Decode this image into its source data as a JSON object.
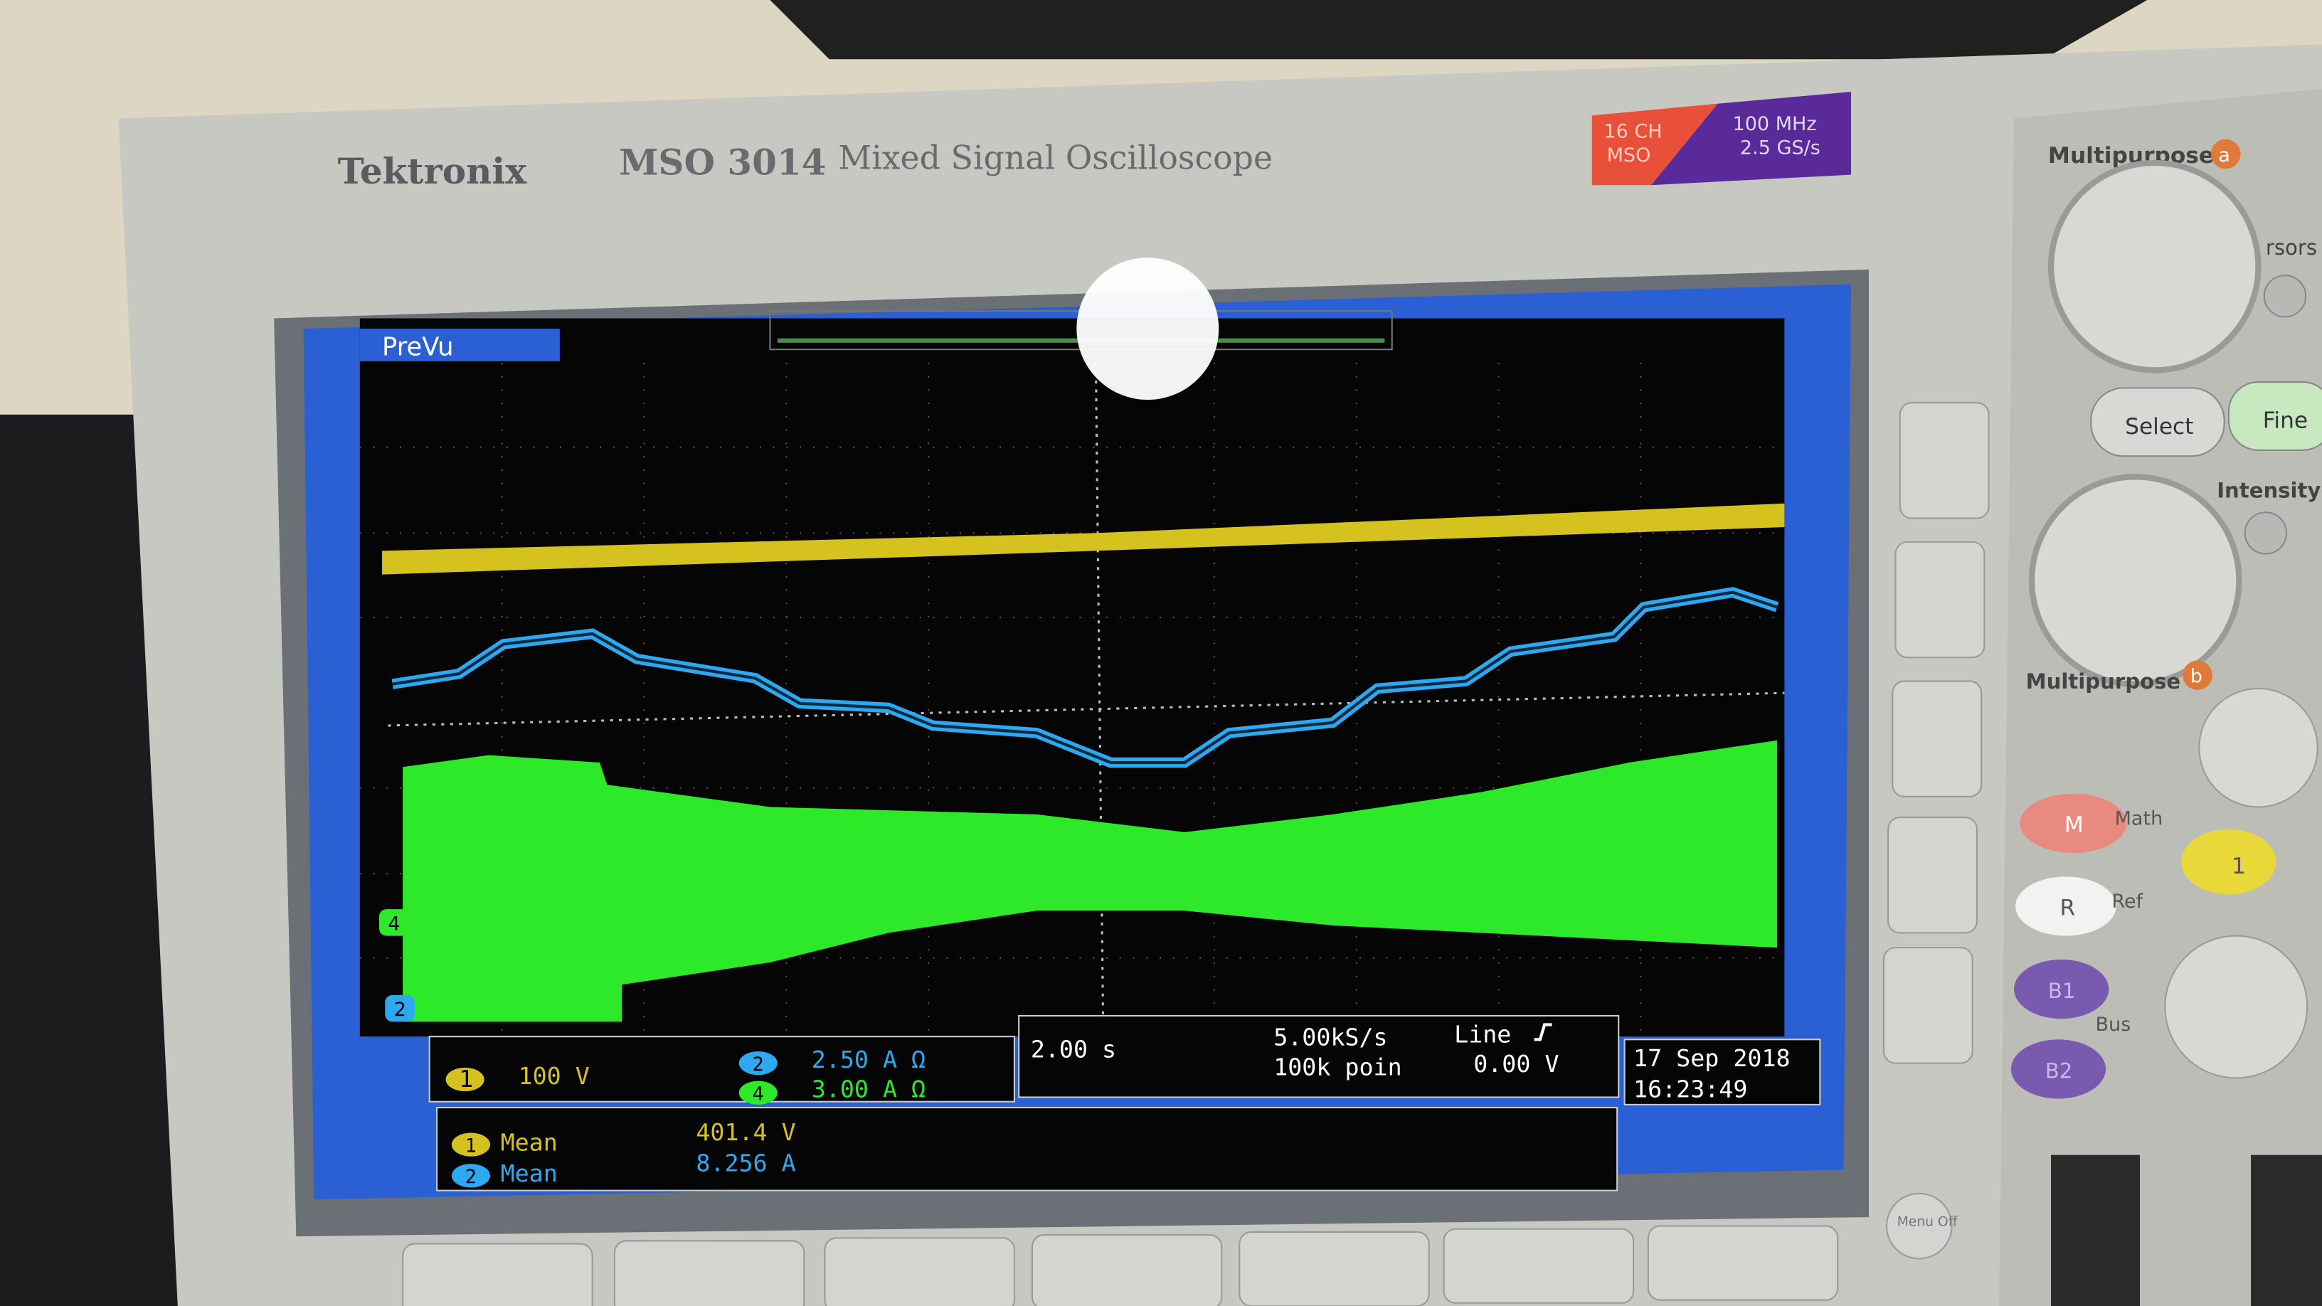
{
  "header": {
    "brand": "Tektronix",
    "model": "MSO 3014",
    "description": "Mixed Signal Oscilloscope",
    "badge_channels": "16 CH",
    "badge_type": "MSO",
    "bandwidth": "100 MHz",
    "sample_rate": "2.5 GS/s"
  },
  "screen": {
    "mode": "PreVu",
    "ground_markers": [
      "4",
      "2"
    ],
    "channels": [
      {
        "number": "1",
        "scale": "100 V"
      },
      {
        "number": "2",
        "scale": "2.50 A Ω"
      },
      {
        "number": "4",
        "scale": "3.00 A Ω"
      }
    ],
    "timebase": "2.00 s",
    "sample_rate": "5.00kS/s",
    "record_length": "100k poin",
    "trigger_source": "Line",
    "trigger_level": "0.00 V",
    "date": "17 Sep 2018",
    "time": "16:23:49",
    "measurements": [
      {
        "channel": "1",
        "label": "Mean",
        "value": "401.4 V"
      },
      {
        "channel": "2",
        "label": "Mean",
        "value": "8.256 A"
      }
    ]
  },
  "controls": {
    "multipurpose_a": "Multipurpose",
    "knob_a": "a",
    "cursors": "rsors",
    "select": "Select",
    "fine": "Fine",
    "intensity": "Intensity",
    "multipurpose_b": "Multipurpose",
    "knob_b": "b",
    "math_key": "M",
    "math": "Math",
    "ref_key": "R",
    "ref": "Ref",
    "bus1": "B1",
    "bus2": "B2",
    "bus": "Bus",
    "channel1": "1",
    "menu_off": "Menu Off"
  }
}
